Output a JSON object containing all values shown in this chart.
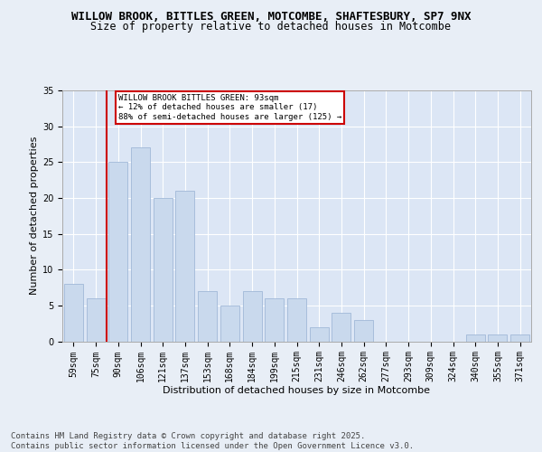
{
  "title_line1": "WILLOW BROOK, BITTLES GREEN, MOTCOMBE, SHAFTESBURY, SP7 9NX",
  "title_line2": "Size of property relative to detached houses in Motcombe",
  "xlabel": "Distribution of detached houses by size in Motcombe",
  "ylabel": "Number of detached properties",
  "categories": [
    "59sqm",
    "75sqm",
    "90sqm",
    "106sqm",
    "121sqm",
    "137sqm",
    "153sqm",
    "168sqm",
    "184sqm",
    "199sqm",
    "215sqm",
    "231sqm",
    "246sqm",
    "262sqm",
    "277sqm",
    "293sqm",
    "309sqm",
    "324sqm",
    "340sqm",
    "355sqm",
    "371sqm"
  ],
  "values": [
    8,
    6,
    25,
    27,
    20,
    21,
    7,
    5,
    7,
    6,
    6,
    2,
    4,
    3,
    0,
    0,
    0,
    0,
    1,
    1,
    1
  ],
  "bar_color": "#c9d9ed",
  "bar_edge_color": "#a0b8d8",
  "bg_color": "#e8eef6",
  "plot_bg_color": "#dce6f5",
  "grid_color": "#ffffff",
  "marker_line_index": 2,
  "marker_line_color": "#cc0000",
  "annotation_box_text": "WILLOW BROOK BITTLES GREEN: 93sqm\n← 12% of detached houses are smaller (17)\n88% of semi-detached houses are larger (125) →",
  "annotation_box_color": "#cc0000",
  "annotation_text_fontsize": 6.5,
  "ylim": [
    0,
    35
  ],
  "yticks": [
    0,
    5,
    10,
    15,
    20,
    25,
    30,
    35
  ],
  "footer_text": "Contains HM Land Registry data © Crown copyright and database right 2025.\nContains public sector information licensed under the Open Government Licence v3.0.",
  "title_fontsize": 9,
  "subtitle_fontsize": 8.5,
  "xlabel_fontsize": 8,
  "ylabel_fontsize": 8,
  "tick_fontsize": 7,
  "footer_fontsize": 6.5
}
